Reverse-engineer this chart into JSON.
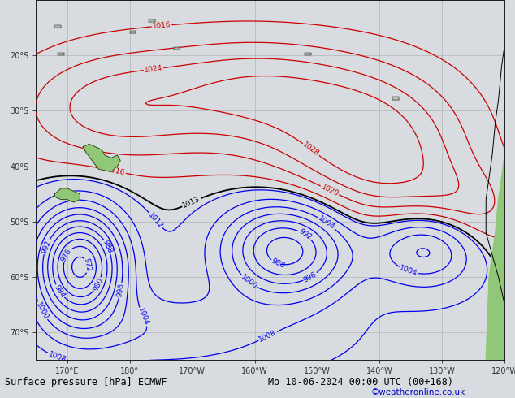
{
  "title": "Surface pressure [hPa] ECMWF",
  "date_label": "Mo 10-06-2024 00:00 UTC (00+168)",
  "copyright": "©weatheronline.co.uk",
  "background_color": "#d8dce0",
  "map_background": "#d8dce0",
  "land_color_nz": "#90c878",
  "land_color_sa": "#90c878",
  "land_color_other": "#b0b8b0",
  "figsize": [
    6.34,
    4.9
  ],
  "dpi": 100,
  "bottom_bar_color": "#c0c0c0",
  "title_fontsize": 8.5,
  "date_fontsize": 8.5,
  "copyright_fontsize": 7.5,
  "copyright_color": "#0000cc",
  "grid_color": "#888888",
  "contour_blue_color": "#0000ee",
  "contour_red_color": "#cc0000",
  "contour_black_color": "#000000",
  "label_fontsize": 6.5,
  "bottom_bar_height": 0.075,
  "axis_label_color": "#333333",
  "lon_ticks": [
    170,
    180,
    -170,
    -160,
    -150,
    -140,
    -130,
    -120
  ],
  "lon_labels": [
    "170°E",
    "180°",
    "170°W",
    "160°W",
    "150°W",
    "140°W",
    "130°W",
    "120°W"
  ],
  "lat_ticks": [
    -70,
    -60,
    -50,
    -40,
    -30,
    -20
  ],
  "lat_labels": [
    "70°S",
    "60°S",
    "50°S",
    "40°S",
    "30°S",
    "20°S"
  ],
  "xmin": 165,
  "xmax": 240,
  "ymin": -75,
  "ymax": -10
}
